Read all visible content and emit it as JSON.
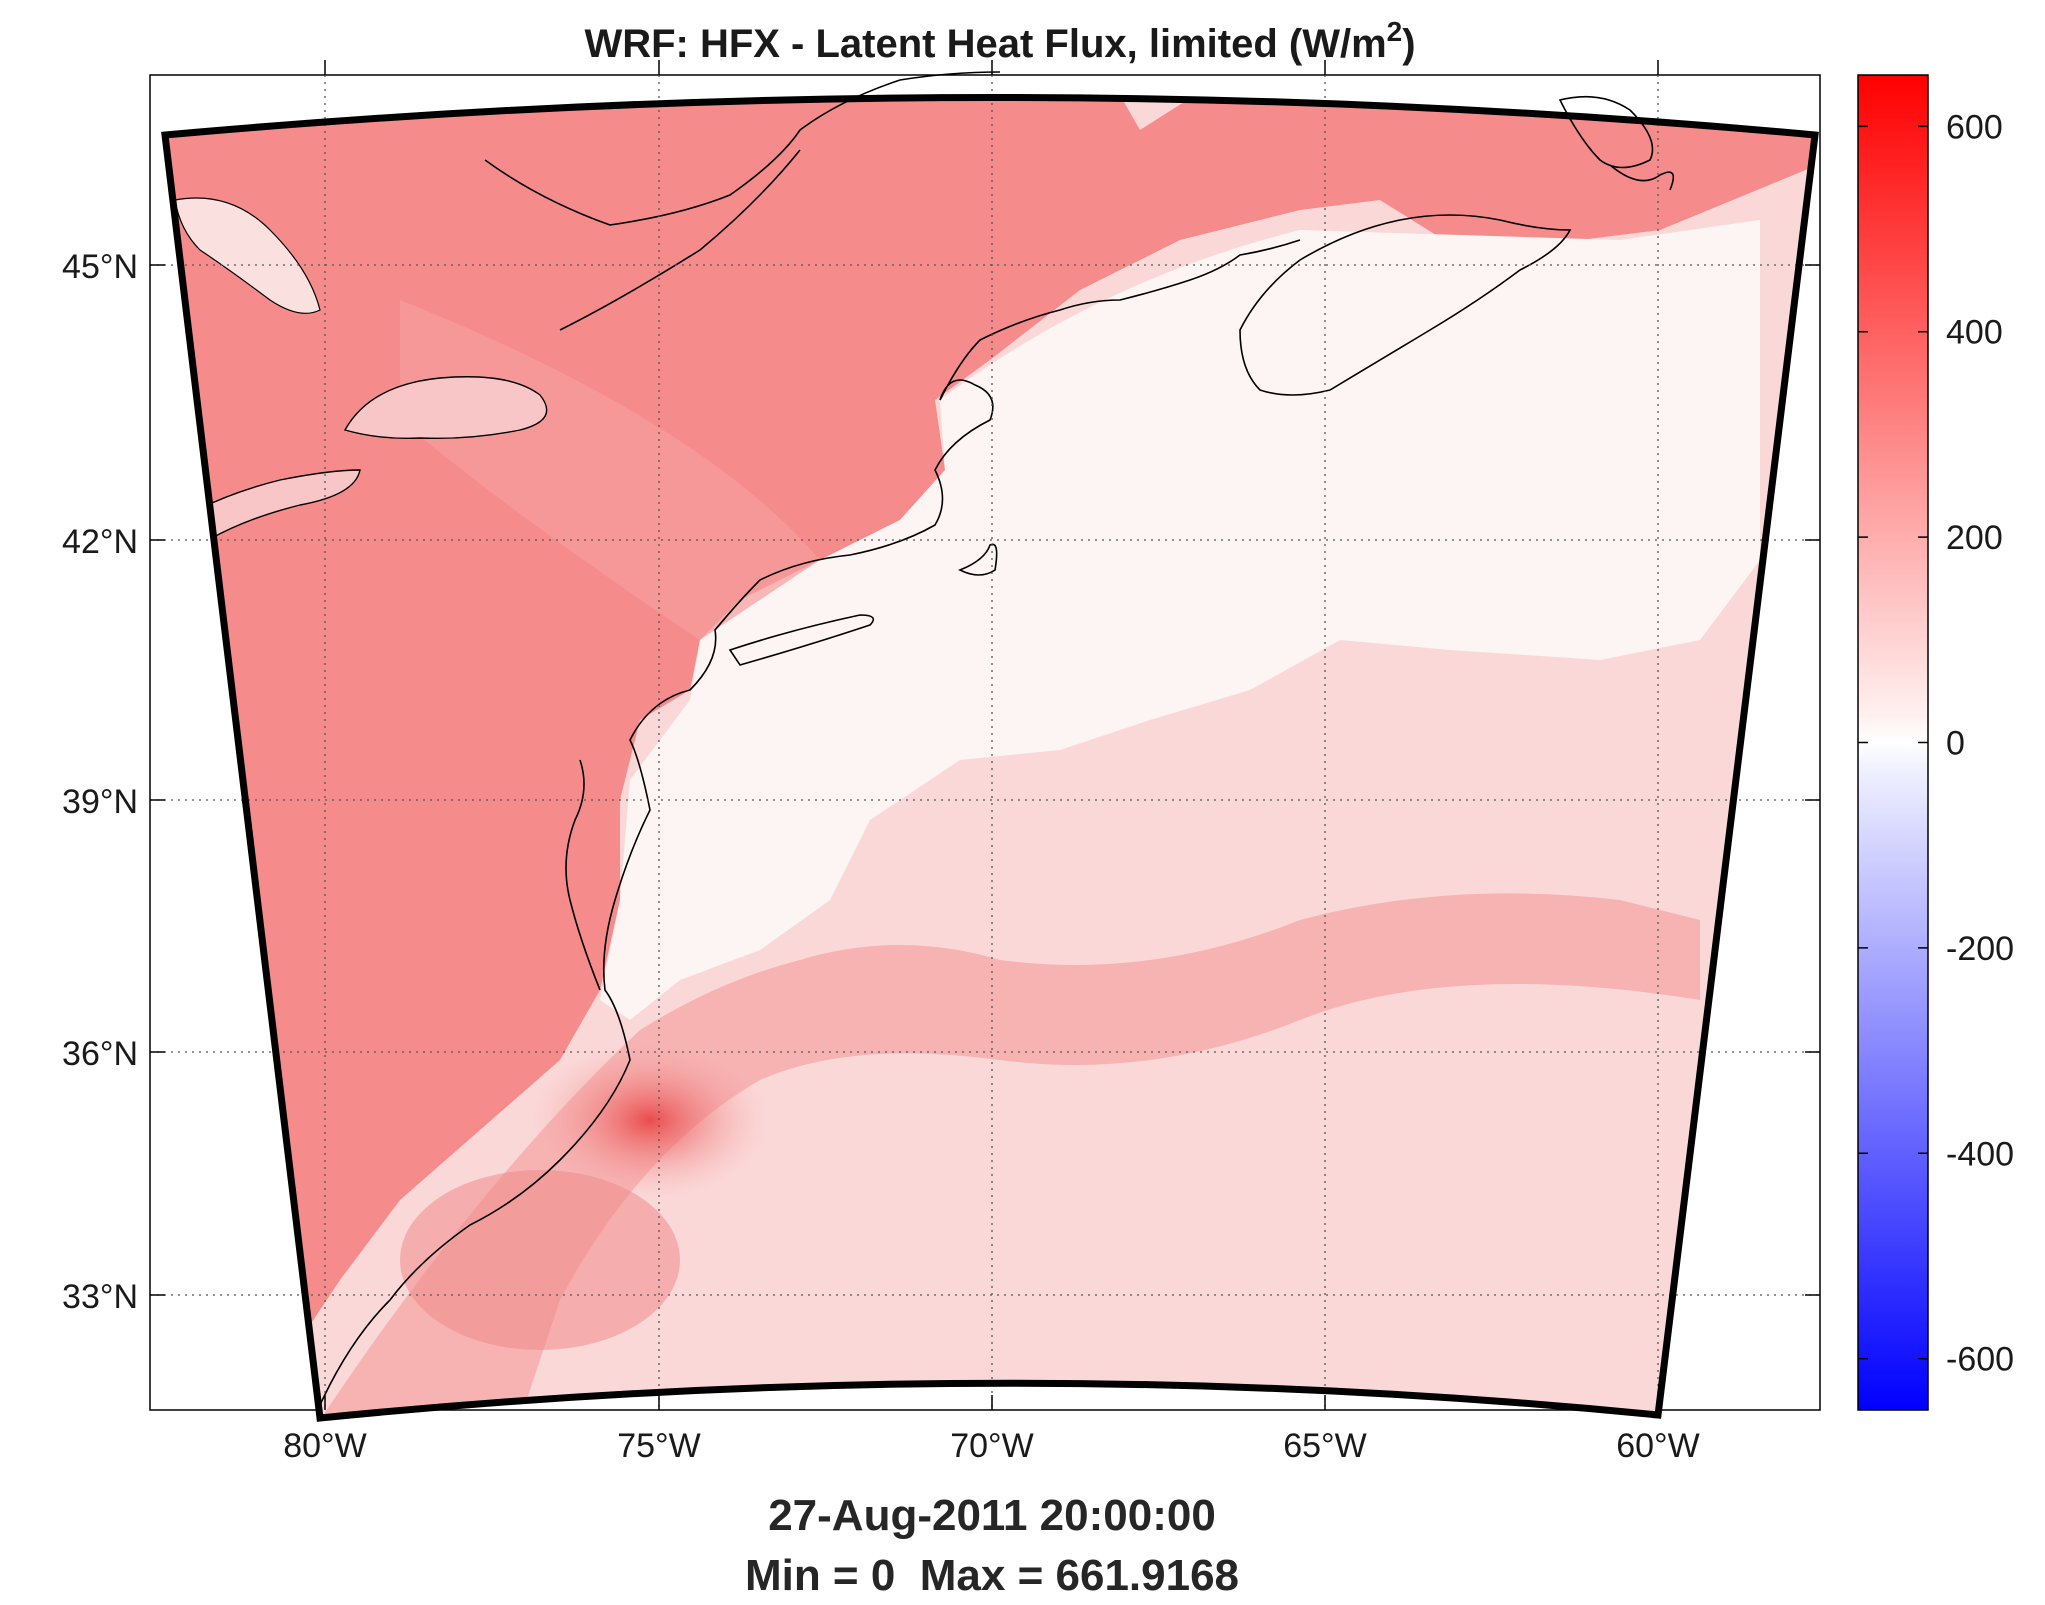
{
  "figure": {
    "title": "WRF: HFX - Latent Heat Flux, limited (W/m",
    "title_sup": "2",
    "title_close": ")",
    "timestamp": "27-Aug-2011 20:00:00",
    "stats": "Min = 0  Max = 661.9168"
  },
  "map": {
    "lon_ticks": [
      "80°W",
      "75°W",
      "70°W",
      "65°W",
      "60°W"
    ],
    "lon_values": [
      -80,
      -75,
      -70,
      -65,
      -60
    ],
    "lat_ticks": [
      "45°N",
      "42°N",
      "39°N",
      "36°N",
      "33°N"
    ],
    "lat_values": [
      45,
      42,
      39,
      36,
      33
    ],
    "grid": "dotted"
  },
  "colorbar": {
    "ticks": [
      "600",
      "400",
      "200",
      "0",
      "-200",
      "-400",
      "-600"
    ],
    "values": [
      600,
      400,
      200,
      0,
      -200,
      -400,
      -600
    ],
    "range": [
      -650,
      650
    ],
    "colors": {
      "max": "#ff0000",
      "mid": "#ffffff",
      "min": "#0000ff"
    }
  },
  "colors": {
    "land_flux": "#f48080",
    "ocean_low": "#fdf3f3",
    "ocean_mid": "#fbd6d6",
    "gulf_stream": "#f06464",
    "frame": "#000000"
  }
}
